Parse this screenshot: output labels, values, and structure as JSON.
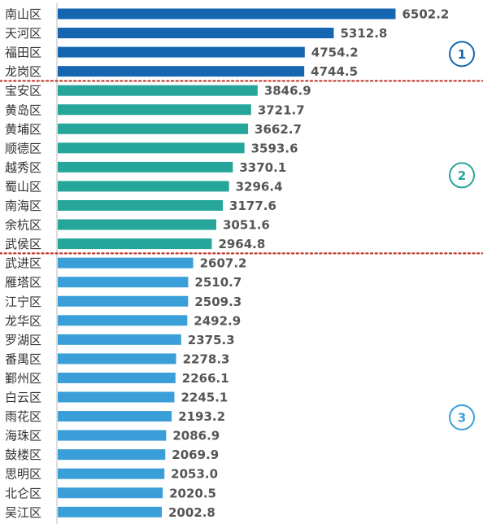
{
  "chart_data": {
    "type": "bar",
    "orientation": "horizontal",
    "title": "",
    "xlabel": "",
    "ylabel": "",
    "xlim": [
      0,
      6800
    ],
    "grid": false,
    "legend": "none",
    "categories": [
      "南山区",
      "天河区",
      "福田区",
      "龙岗区",
      "宝安区",
      "黄岛区",
      "黄埔区",
      "顺德区",
      "越秀区",
      "蜀山区",
      "南海区",
      "余杭区",
      "武侯区",
      "武进区",
      "雁塔区",
      "江宁区",
      "龙华区",
      "罗湖区",
      "番禺区",
      "鄞州区",
      "白云区",
      "雨花区",
      "海珠区",
      "鼓楼区",
      "思明区",
      "北仑区",
      "吴江区"
    ],
    "values": [
      6502.2,
      5312.8,
      4754.2,
      4744.5,
      3846.9,
      3721.7,
      3662.7,
      3593.6,
      3370.1,
      3296.4,
      3177.6,
      3051.6,
      2964.8,
      2607.2,
      2510.7,
      2509.3,
      2492.9,
      2375.3,
      2278.3,
      2266.1,
      2245.1,
      2193.2,
      2086.9,
      2069.9,
      2053.0,
      2020.5,
      2002.8
    ],
    "value_labels": [
      "6502.2",
      "5312.8",
      "4754.2",
      "4744.5",
      "3846.9",
      "3721.7",
      "3662.7",
      "3593.6",
      "3370.1",
      "3296.4",
      "3177.6",
      "3051.6",
      "2964.8",
      "2607.2",
      "2510.7",
      "2509.3",
      "2492.9",
      "2375.3",
      "2278.3",
      "2266.1",
      "2245.1",
      "2193.2",
      "2086.9",
      "2069.9",
      "2053.0",
      "2020.5",
      "2002.8"
    ],
    "groups": [
      {
        "label": "1",
        "count": 4,
        "color": "#1565b0"
      },
      {
        "label": "2",
        "count": 9,
        "color": "#26a69a"
      },
      {
        "label": "3",
        "count": 14,
        "color": "#3a9fd8"
      }
    ],
    "separator_color": "#c0392b"
  }
}
